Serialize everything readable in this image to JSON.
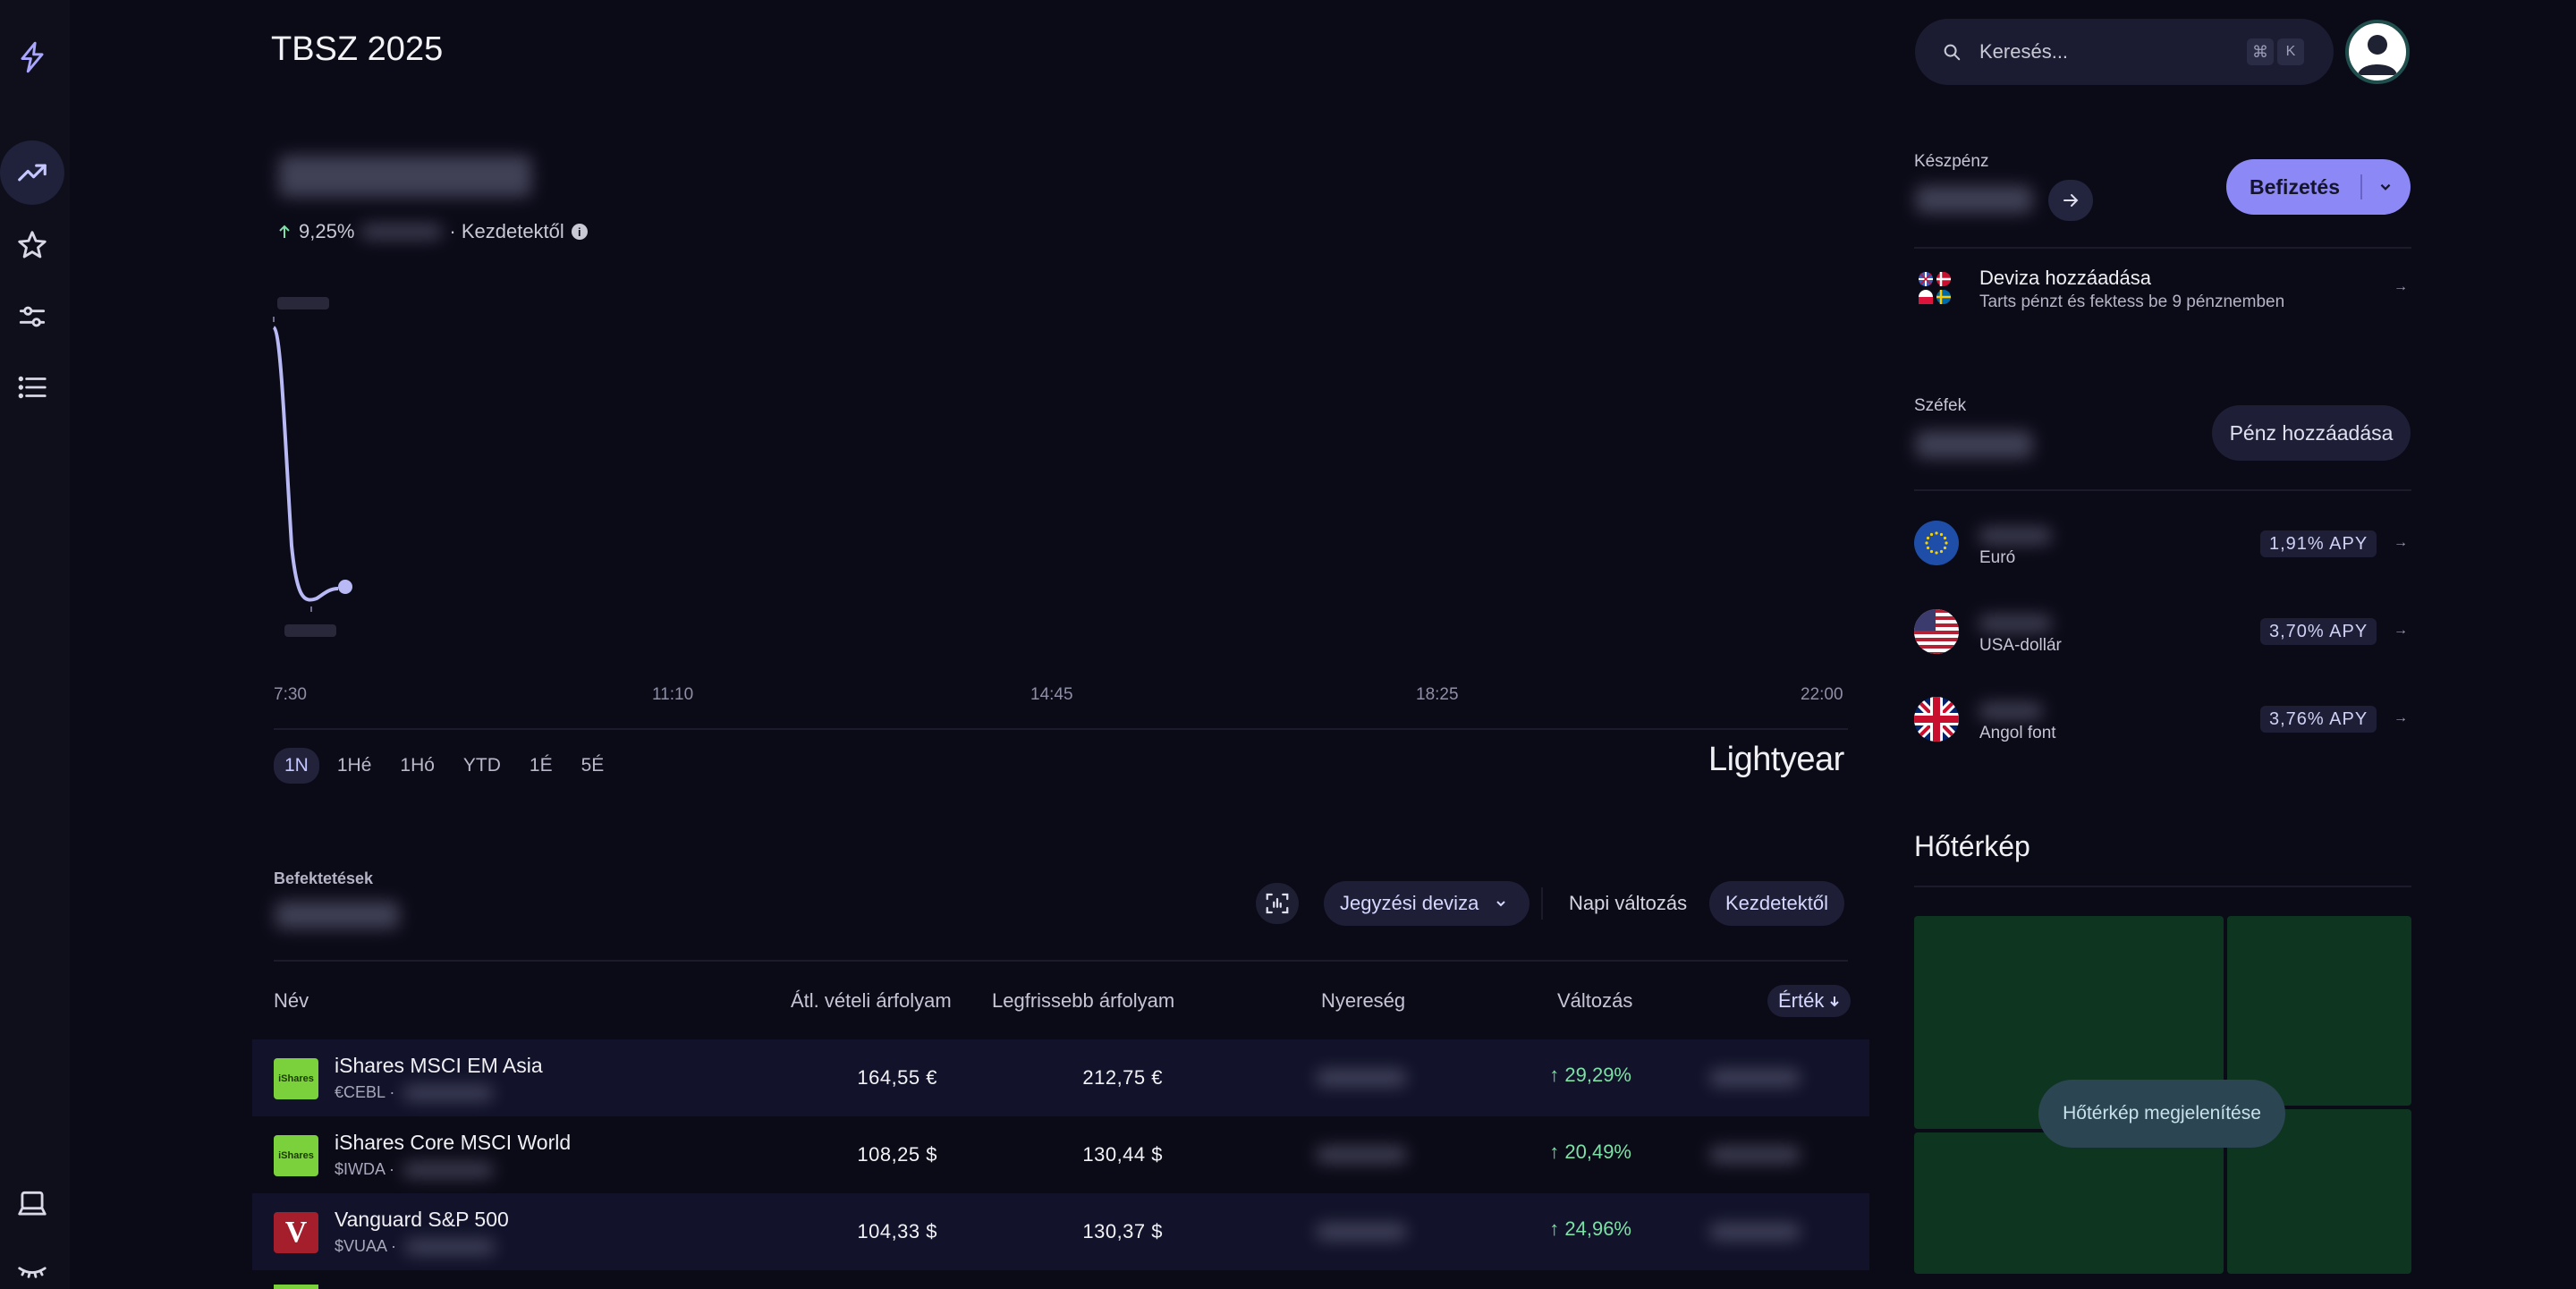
{
  "page_title": "TBSZ 2025",
  "portfolio": {
    "change_pct": "9,25%",
    "period_label": "· Kezdetektől",
    "chart_xticks": [
      "7:30",
      "11:10",
      "14:45",
      "18:25",
      "22:00"
    ],
    "ranges": [
      "1N",
      "1Hé",
      "1Hó",
      "YTD",
      "1É",
      "5É"
    ],
    "active_range": "1N",
    "brand": "Lightyear"
  },
  "investments": {
    "label": "Befektetések",
    "currency_dropdown": "Jegyzési deviza",
    "toggle_daily": "Napi változás",
    "toggle_since": "Kezdetektől",
    "columns": {
      "name": "Név",
      "avg_price": "Átl. vételi árfolyam",
      "latest_price": "Legfrissebb árfolyam",
      "profit": "Nyereség",
      "change": "Változás",
      "value": "Érték"
    },
    "rows": [
      {
        "name": "iShares MSCI EM Asia",
        "ticker": "€CEBL ·",
        "logo_text": "iShares",
        "avg": "164,55 €",
        "latest": "212,75 €",
        "change": "29,29%"
      },
      {
        "name": "iShares Core MSCI World",
        "ticker": "$IWDA ·",
        "logo_text": "iShares",
        "avg": "108,25 $",
        "latest": "130,44 $",
        "change": "20,49%"
      },
      {
        "name": "Vanguard S&P 500",
        "ticker": "$VUAA ·",
        "logo_text": "V",
        "avg": "104,33 $",
        "latest": "130,37 $",
        "change": "24,96%"
      }
    ]
  },
  "search": {
    "placeholder": "Keresés...",
    "shortcut_cmd": "⌘",
    "shortcut_key": "K"
  },
  "cash": {
    "label": "Készpénz",
    "deposit_button": "Befizetés"
  },
  "currency_add": {
    "title": "Deviza hozzáadása",
    "subtitle": "Tarts pénzt és fektess be 9 pénznemben"
  },
  "vaults": {
    "label": "Széfek",
    "add_button": "Pénz hozzáadása",
    "accounts": [
      {
        "name": "Euró",
        "apy": "1,91%  APY"
      },
      {
        "name": "USA-dollár",
        "apy": "3,70%  APY"
      },
      {
        "name": "Angol font",
        "apy": "3,76%  APY"
      }
    ]
  },
  "heatmap": {
    "title": "Hőtérkép",
    "show_button": "Hőtérkép megjelenítése"
  },
  "colors": {
    "accent": "#8c88f5",
    "positive": "#7de0a6",
    "background": "#0b0b18"
  }
}
